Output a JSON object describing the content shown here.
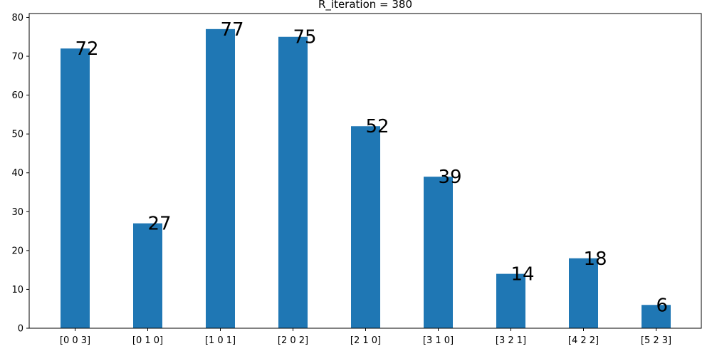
{
  "chart_data": {
    "type": "bar",
    "title": "R_iteration = 380",
    "xlabel": "",
    "ylabel": "",
    "categories": [
      "[0 0 3]",
      "[0 1 0]",
      "[1 0 1]",
      "[2 0 2]",
      "[2 1 0]",
      "[3 1 0]",
      "[3 2 1]",
      "[4 2 2]",
      "[5 2 3]"
    ],
    "values": [
      72,
      27,
      77,
      75,
      52,
      39,
      14,
      18,
      6
    ],
    "data_labels": [
      "72",
      "27",
      "77",
      "75",
      "52",
      "39",
      "14",
      "18",
      "6"
    ],
    "ylim": [
      0,
      81
    ],
    "yticks": [
      0,
      10,
      20,
      30,
      40,
      50,
      60,
      70,
      80
    ],
    "ytick_labels": [
      "0",
      "10",
      "20",
      "30",
      "40",
      "50",
      "60",
      "70",
      "80"
    ],
    "grid": false,
    "legend": "none",
    "bar_color": "#1f77b4"
  }
}
